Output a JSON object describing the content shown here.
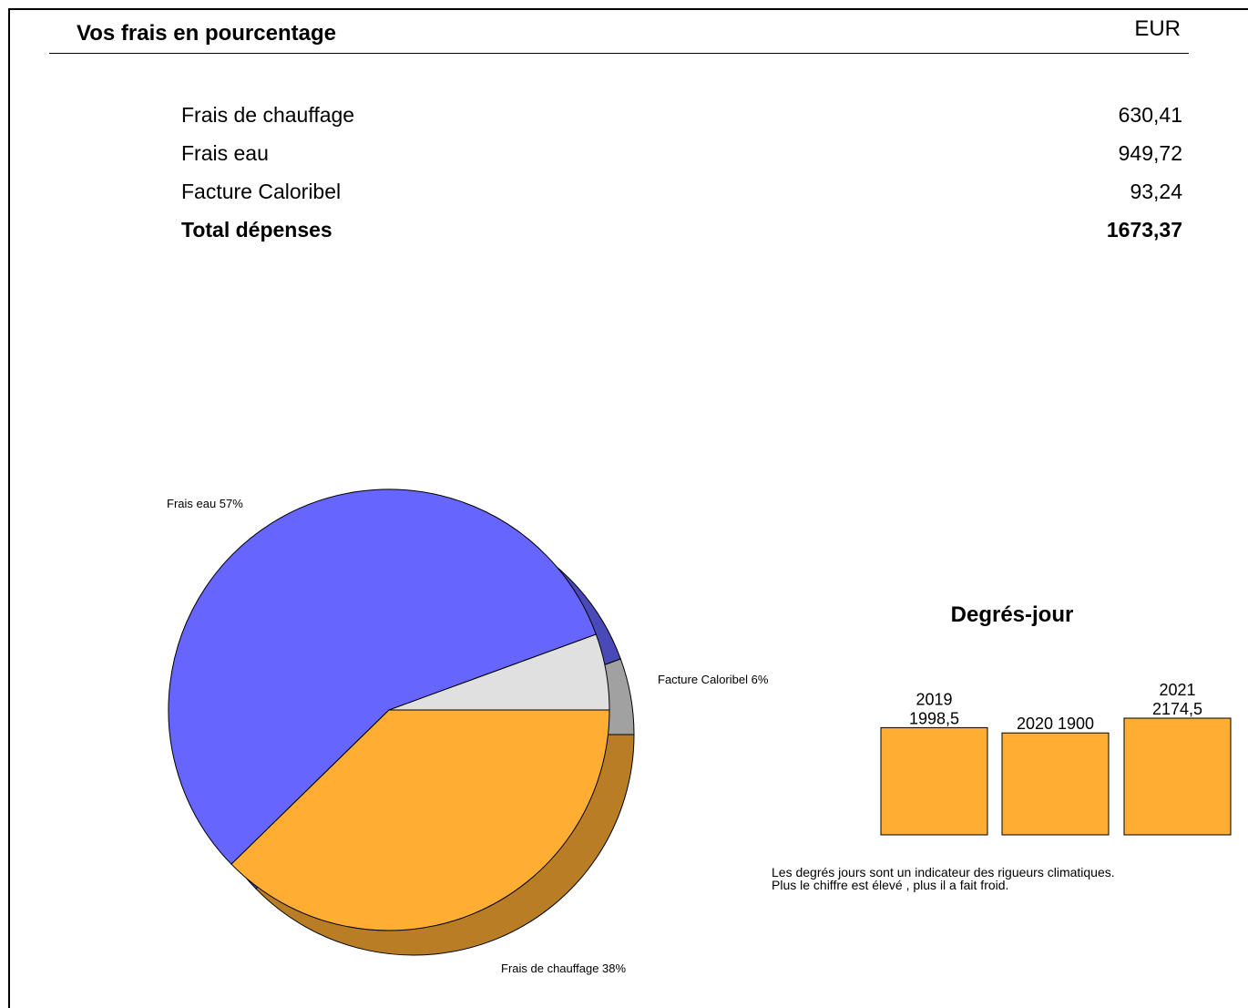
{
  "header": {
    "title": "Vos frais en pourcentage",
    "currency": "EUR"
  },
  "costs": {
    "rows": [
      {
        "label": "Frais de chauffage",
        "value": "630,41"
      },
      {
        "label": "Frais eau",
        "value": "949,72"
      },
      {
        "label": "Facture Caloribel",
        "value": "93,24"
      }
    ],
    "total": {
      "label": "Total dépenses",
      "value": "1673,37"
    }
  },
  "chart_data": [
    {
      "type": "pie",
      "style": "3d",
      "slices": [
        {
          "label": "Frais eau 57%",
          "name": "Frais eau",
          "value": 949.72,
          "percent": 57,
          "color": "#6666ff"
        },
        {
          "label": "Facture Caloribel 6%",
          "name": "Facture Caloribel",
          "value": 93.24,
          "percent": 6,
          "color": "#e0e0e0"
        },
        {
          "label": "Frais de chauffage 38%",
          "name": "Frais de chauffage",
          "value": 630.41,
          "percent": 38,
          "color": "#ffad33"
        }
      ]
    },
    {
      "type": "bar",
      "title": "Degrés-jour",
      "categories": [
        "2019",
        "2020",
        "2021"
      ],
      "values": [
        1998.5,
        1900,
        2174.5
      ],
      "labels": [
        [
          "2019",
          "1998,5"
        ],
        [
          "2020 1900"
        ],
        [
          "2021",
          "2174,5"
        ]
      ],
      "color": "#ffad33",
      "ylim": [
        0,
        2174.5
      ]
    }
  ],
  "note": {
    "line1": "Les degrés jours sont un indicateur des rigueurs climatiques.",
    "line2": "Plus le chiffre est élevé , plus il a fait froid."
  }
}
